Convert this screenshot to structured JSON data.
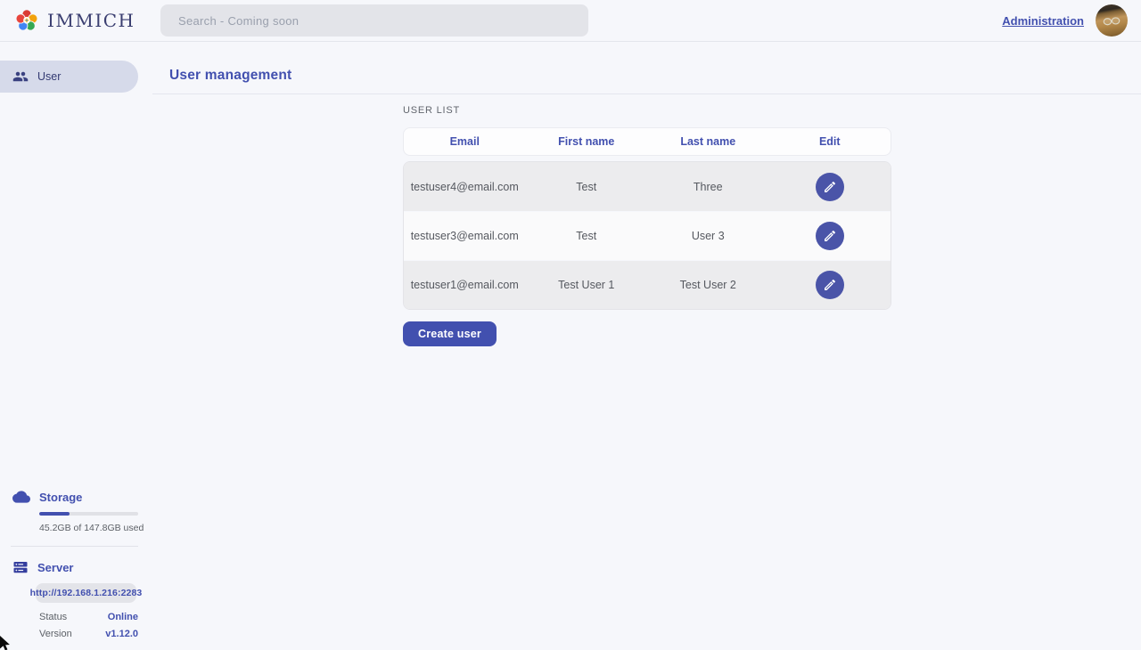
{
  "topbar": {
    "app_name": "IMMICH",
    "search_placeholder": "Search - Coming soon",
    "admin_link": "Administration"
  },
  "sidebar": {
    "items": [
      {
        "label": "User"
      }
    ],
    "storage": {
      "title": "Storage",
      "usage_text": "45.2GB of 147.8GB used",
      "percent_used": 30.6
    },
    "server": {
      "title": "Server",
      "url": "http://192.168.1.216:2283",
      "status_label": "Status",
      "status_value": "Online",
      "version_label": "Version",
      "version_value": "v1.12.0"
    }
  },
  "page": {
    "title": "User management",
    "section_label": "USER LIST",
    "table": {
      "columns": [
        "Email",
        "First name",
        "Last name",
        "Edit"
      ],
      "rows": [
        {
          "email": "testuser4@email.com",
          "first_name": "Test",
          "last_name": "Three"
        },
        {
          "email": "testuser3@email.com",
          "first_name": "Test",
          "last_name": "User 3"
        },
        {
          "email": "testuser1@email.com",
          "first_name": "Test User 1",
          "last_name": "Test User 2"
        }
      ]
    },
    "create_button": "Create user"
  },
  "colors": {
    "primary": "#4250af",
    "edit_button": "#4a54a8",
    "sidebar_active_bg": "#d6daea",
    "row_gray": "#ececee",
    "background": "#f6f7fb"
  }
}
